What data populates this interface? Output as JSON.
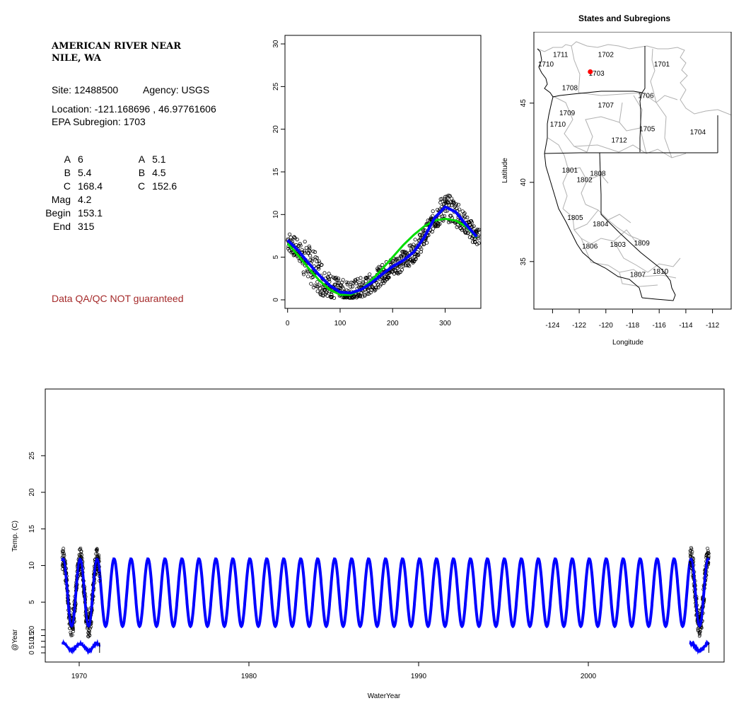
{
  "info": {
    "title_line1": "AMERICAN RIVER NEAR",
    "title_line2": "NILE, WA",
    "site": "Site: 12488500",
    "agency": "Agency: USGS",
    "location": "Location: -121.168696 , 46.97761606",
    "epa": "EPA Subregion: 1703",
    "params_left": [
      {
        "k": "A",
        "v": "6"
      },
      {
        "k": "B",
        "v": "5.4"
      },
      {
        "k": "C",
        "v": "168.4"
      },
      {
        "k": "Mag",
        "v": "4.2"
      },
      {
        "k": "Begin",
        "v": "153.1"
      },
      {
        "k": "End",
        "v": "315"
      }
    ],
    "params_right": [
      {
        "k": "A",
        "v": "5.1"
      },
      {
        "k": "B",
        "v": "4.5"
      },
      {
        "k": "C",
        "v": "152.6"
      }
    ],
    "qa_note": "Data QA/QC NOT guaranteed",
    "qa_color": "#a52a2a"
  },
  "chart_data": [
    {
      "type": "scatter",
      "id": "day-of-year",
      "title": "",
      "xlim": [
        -5,
        368
      ],
      "ylim": [
        -1,
        31
      ],
      "xticks": [
        0,
        100,
        200,
        300
      ],
      "yticks": [
        0,
        5,
        10,
        15,
        20,
        25,
        30
      ],
      "series": [
        {
          "kind": "points",
          "color": "#000000",
          "note": "daily observations"
        },
        {
          "kind": "line",
          "color": "#0000ff",
          "x": [
            0,
            20,
            40,
            60,
            80,
            100,
            120,
            140,
            160,
            180,
            200,
            220,
            240,
            260,
            280,
            300,
            320,
            340,
            360
          ],
          "y": [
            7,
            5.8,
            4.3,
            2.9,
            1.7,
            0.9,
            0.8,
            1.2,
            2,
            3,
            3.9,
            4.6,
            5.6,
            7.3,
            9.6,
            10.9,
            10.3,
            8.8,
            7.4
          ]
        },
        {
          "kind": "line",
          "color": "#00dd00",
          "x": [
            0,
            20,
            40,
            60,
            80,
            100,
            120,
            140,
            160,
            180,
            200,
            220,
            240,
            260,
            280,
            300,
            320,
            340,
            360
          ],
          "y": [
            6.6,
            5.2,
            3.7,
            2.3,
            1.2,
            0.6,
            0.6,
            1.2,
            2.3,
            3.6,
            5,
            6.4,
            7.6,
            8.6,
            9.3,
            9.5,
            9.3,
            8.6,
            7.3
          ]
        }
      ]
    },
    {
      "type": "map",
      "id": "subregions-map",
      "title": "States and Subregions",
      "xlabel": "Longitude",
      "ylabel": "Latitude",
      "xlim": [
        -125.4,
        -110.6
      ],
      "ylim": [
        32.0,
        49.5
      ],
      "xticks": [
        -124,
        -122,
        -120,
        -118,
        -116,
        -114,
        -112
      ],
      "yticks": [
        35,
        40,
        45
      ],
      "site": {
        "lon": -121.17,
        "lat": 46.98,
        "color": "#ff0000"
      },
      "labels": [
        {
          "t": "1702",
          "lon": -120.0,
          "lat": 48.1
        },
        {
          "t": "1701",
          "lon": -115.8,
          "lat": 47.5
        },
        {
          "t": "1711",
          "lon": -123.4,
          "lat": 48.1
        },
        {
          "t": "1710",
          "lon": -124.5,
          "lat": 47.5
        },
        {
          "t": "1703",
          "lon": -120.7,
          "lat": 46.9
        },
        {
          "t": "1708",
          "lon": -122.7,
          "lat": 46.0
        },
        {
          "t": "1706",
          "lon": -117.0,
          "lat": 45.5
        },
        {
          "t": "1707",
          "lon": -120.0,
          "lat": 44.9
        },
        {
          "t": "1709",
          "lon": -122.9,
          "lat": 44.4
        },
        {
          "t": "1710",
          "lon": -123.6,
          "lat": 43.7
        },
        {
          "t": "1705",
          "lon": -116.9,
          "lat": 43.4
        },
        {
          "t": "1704",
          "lon": -113.1,
          "lat": 43.2
        },
        {
          "t": "1712",
          "lon": -119.0,
          "lat": 42.7
        },
        {
          "t": "1801",
          "lon": -122.7,
          "lat": 40.8
        },
        {
          "t": "1808",
          "lon": -120.6,
          "lat": 40.6
        },
        {
          "t": "1802",
          "lon": -121.6,
          "lat": 40.2
        },
        {
          "t": "1805",
          "lon": -122.3,
          "lat": 37.8
        },
        {
          "t": "1804",
          "lon": -120.4,
          "lat": 37.4
        },
        {
          "t": "1806",
          "lon": -121.2,
          "lat": 36.0
        },
        {
          "t": "1803",
          "lon": -119.1,
          "lat": 36.1
        },
        {
          "t": "1809",
          "lon": -117.3,
          "lat": 36.2
        },
        {
          "t": "1807",
          "lon": -117.6,
          "lat": 34.2
        },
        {
          "t": "1810",
          "lon": -115.9,
          "lat": 34.4
        }
      ]
    },
    {
      "type": "line",
      "id": "time-series",
      "title": "",
      "xlabel": "WaterYear",
      "ylabel": "Temp. (C)",
      "ylabel2": "@Year",
      "xlim": [
        1968.0,
        2008.0
      ],
      "ylim": [
        -2.0,
        30.0
      ],
      "xticks": [
        1970,
        1980,
        1990,
        2000
      ],
      "yticks": [
        5,
        10,
        15,
        20,
        25
      ],
      "yticks2": [
        0,
        5,
        10,
        15,
        20
      ],
      "series": [
        {
          "name": "",
          "color": "#0000ff",
          "from": 1969.0,
          "to": 2007.1,
          "mean": 6.3,
          "amp": 4.6
        },
        {
          "name": "",
          "color": "#000000",
          "segments": [
            [
              1969.0,
              1971.2
            ],
            [
              2006.0,
              2007.1
            ]
          ]
        }
      ]
    }
  ]
}
